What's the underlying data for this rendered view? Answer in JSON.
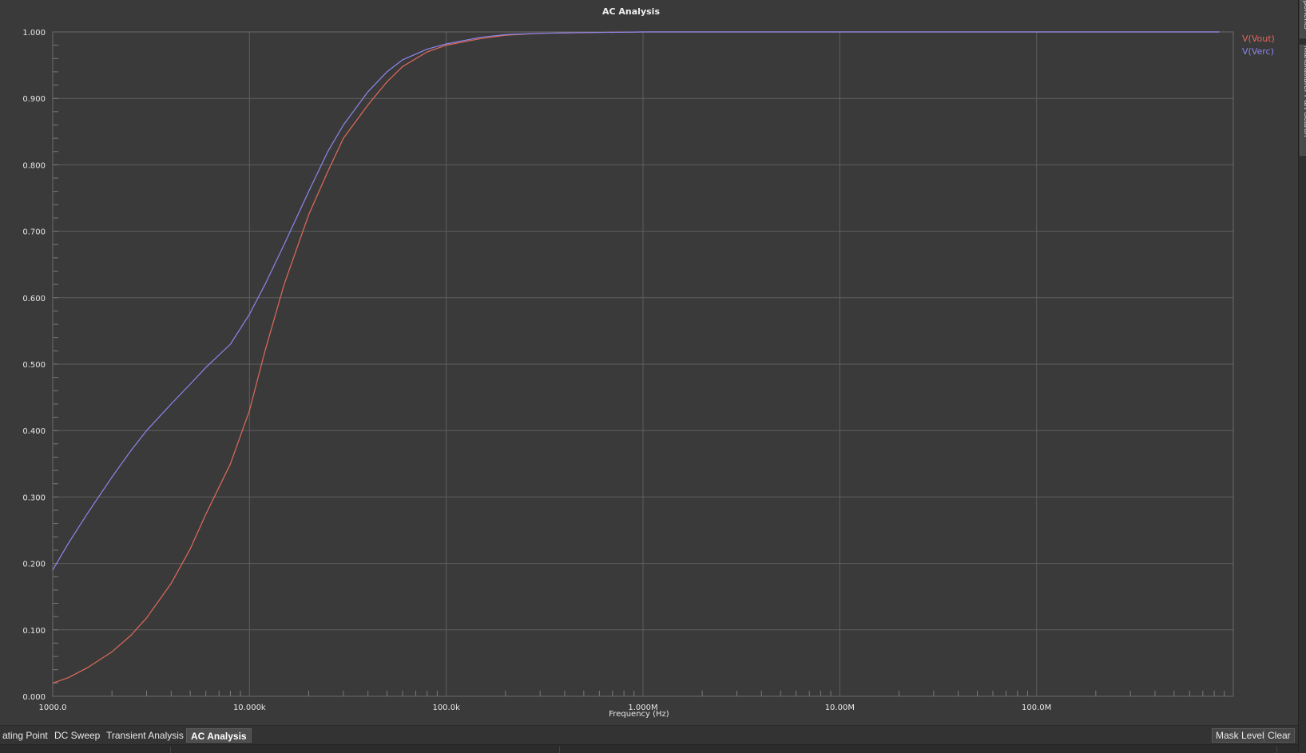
{
  "colors": {
    "background": "#3a3a3a",
    "grid": "#5f5f5f",
    "vout": "#e06a5a",
    "verc": "#8c86ee"
  },
  "chart_data": {
    "type": "line",
    "title": "AC Analysis",
    "xlabel": "Frequency (Hz)",
    "ylabel": "",
    "xscale": "log",
    "xlim": [
      1000,
      1000000000
    ],
    "ylim": [
      0,
      1
    ],
    "grid": true,
    "legend_position": "top-right",
    "x_tick_values": [
      1000,
      10000,
      100000,
      1000000,
      10000000,
      100000000
    ],
    "x_tick_labels": [
      "1000.0",
      "10.000k",
      "100.0k",
      "1.000M",
      "10.00M",
      "100.0M"
    ],
    "y_tick_values": [
      0,
      0.1,
      0.2,
      0.3,
      0.4,
      0.5,
      0.6,
      0.7,
      0.8,
      0.9,
      1.0
    ],
    "y_tick_labels": [
      "0.000",
      "0.100",
      "0.200",
      "0.300",
      "0.400",
      "0.500",
      "0.600",
      "0.700",
      "0.800",
      "0.900",
      "1.000"
    ],
    "series": [
      {
        "name": "V(Vout)",
        "color": "#e06a5a",
        "x": [
          1000,
          1200,
          1500,
          2000,
          2500,
          3000,
          4000,
          5000,
          6000,
          8000,
          10000,
          12000,
          15000,
          20000,
          25000,
          30000,
          40000,
          50000,
          60000,
          80000,
          100000,
          150000,
          200000,
          300000,
          500000,
          1000000,
          10000000,
          100000000,
          850000000
        ],
        "y": [
          0.02,
          0.028,
          0.043,
          0.067,
          0.092,
          0.118,
          0.17,
          0.222,
          0.274,
          0.35,
          0.43,
          0.52,
          0.62,
          0.725,
          0.79,
          0.84,
          0.89,
          0.925,
          0.948,
          0.97,
          0.98,
          0.99,
          0.995,
          0.998,
          0.999,
          1.0,
          1.0,
          1.0,
          1.0
        ]
      },
      {
        "name": "V(Verc)",
        "color": "#8c86ee",
        "x": [
          1000,
          1200,
          1500,
          2000,
          2500,
          3000,
          4000,
          5000,
          6000,
          8000,
          10000,
          12000,
          15000,
          20000,
          25000,
          30000,
          40000,
          50000,
          60000,
          80000,
          100000,
          150000,
          200000,
          300000,
          500000,
          1000000,
          10000000,
          100000000,
          850000000
        ],
        "y": [
          0.19,
          0.23,
          0.275,
          0.33,
          0.37,
          0.4,
          0.44,
          0.47,
          0.495,
          0.53,
          0.575,
          0.62,
          0.68,
          0.76,
          0.82,
          0.86,
          0.91,
          0.94,
          0.958,
          0.974,
          0.982,
          0.992,
          0.996,
          0.998,
          0.999,
          1.0,
          1.0,
          1.0,
          1.0
        ]
      }
    ]
  },
  "bottom_tabs": {
    "operating_point": "ating Point",
    "dc_sweep": "DC Sweep",
    "transient": "Transient Analysis",
    "ac_analysis": "AC Analysis",
    "mask_level": "Mask Level",
    "clear": "Clear"
  },
  "side_tabs": {
    "components": "ponents",
    "manufacturer_search": "Manufacturer Part Search"
  }
}
